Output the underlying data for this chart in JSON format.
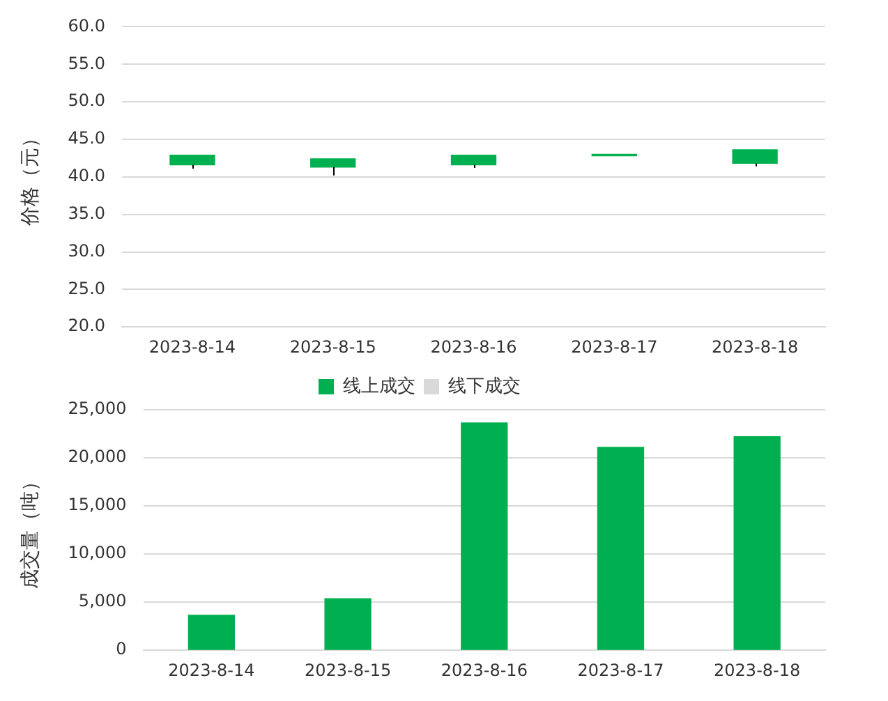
{
  "chart_data": [
    {
      "type": "candlestick",
      "ylabel": "价格（元）",
      "categories": [
        "2023-8-14",
        "2023-8-15",
        "2023-8-16",
        "2023-8-17",
        "2023-8-18"
      ],
      "ohlc": [
        [
          42.9,
          42.9,
          41.1,
          41.6
        ],
        [
          42.4,
          42.4,
          40.2,
          41.3
        ],
        [
          42.9,
          42.9,
          41.2,
          41.6
        ],
        [
          43.0,
          43.0,
          42.8,
          42.8
        ],
        [
          43.6,
          43.6,
          41.4,
          41.8
        ]
      ],
      "color": "#00b050",
      "ylim": [
        20,
        60
      ],
      "yticks": [
        {
          "value": 20,
          "label": "20.0"
        },
        {
          "value": 25,
          "label": "25.0"
        },
        {
          "value": 30,
          "label": "30.0"
        },
        {
          "value": 35,
          "label": "35.0"
        },
        {
          "value": 40,
          "label": "40.0"
        },
        {
          "value": 45,
          "label": "45.0"
        },
        {
          "value": 50,
          "label": "50.0"
        },
        {
          "value": 55,
          "label": "55.0"
        },
        {
          "value": 60,
          "label": "60.0"
        }
      ],
      "grid": "y",
      "legend": false
    },
    {
      "type": "bar",
      "ylabel": "成交量（吨）",
      "categories": [
        "2023-8-14",
        "2023-8-15",
        "2023-8-16",
        "2023-8-17",
        "2023-8-18"
      ],
      "stacked": true,
      "series": [
        {
          "name": "线上成交",
          "color": "#00b050",
          "values": [
            3650,
            5370,
            23630,
            21100,
            22200
          ]
        },
        {
          "name": "线下成交",
          "color": "#d9d9d9",
          "values": [
            null,
            null,
            null,
            null,
            null
          ]
        }
      ],
      "ylim": [
        0,
        25000
      ],
      "yticks": [
        0,
        {
          "value": 5000,
          "label": "5,000"
        },
        {
          "value": 10000,
          "label": "10,000"
        },
        {
          "value": 15000,
          "label": "15,000"
        },
        {
          "value": 20000,
          "label": "20,000"
        },
        {
          "value": 25000,
          "label": "25,000"
        }
      ],
      "grid": "y",
      "legend": "top"
    }
  ]
}
